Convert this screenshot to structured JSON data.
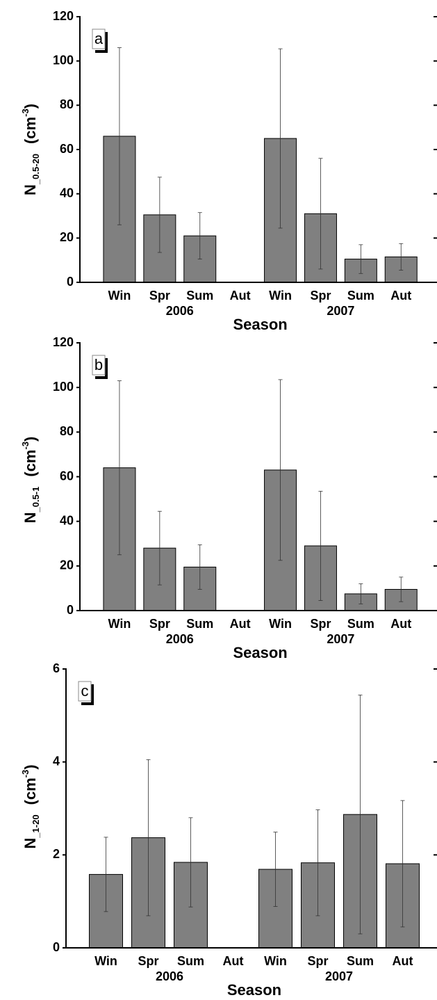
{
  "chart_data": [
    {
      "type": "bar",
      "panel_label": "a",
      "categories": [
        "Win",
        "Spr",
        "Sum",
        "Aut",
        "Win",
        "Spr",
        "Sum",
        "Aut"
      ],
      "group_labels": [
        "2006",
        "2007"
      ],
      "x_label": "Season",
      "y_label": {
        "main": "N",
        "sub": "_0.5-20",
        "unit": "(cm",
        "sup": "-3",
        "close": ")"
      },
      "values": [
        66,
        30.5,
        21,
        null,
        65,
        31,
        10.5,
        11.5
      ],
      "errors": [
        40,
        17,
        10.5,
        null,
        40.5,
        25,
        6.5,
        6
      ],
      "color": "#808080",
      "ylim": [
        0,
        120
      ],
      "yticks": [
        0,
        20,
        40,
        60,
        80,
        100,
        120
      ]
    },
    {
      "type": "bar",
      "panel_label": "b",
      "categories": [
        "Win",
        "Spr",
        "Sum",
        "Aut",
        "Win",
        "Spr",
        "Sum",
        "Aut"
      ],
      "group_labels": [
        "2006",
        "2007"
      ],
      "x_label": "Season",
      "y_label": {
        "main": "N",
        "sub": "_0.5-1",
        "unit": "(cm",
        "sup": "-3",
        "close": ")"
      },
      "values": [
        64,
        28,
        19.5,
        null,
        63,
        29,
        7.5,
        9.5
      ],
      "errors": [
        39,
        16.5,
        10,
        null,
        40.5,
        24.5,
        4.5,
        5.5
      ],
      "color": "#808080",
      "ylim": [
        0,
        120
      ],
      "yticks": [
        0,
        20,
        40,
        60,
        80,
        100,
        120
      ]
    },
    {
      "type": "bar",
      "panel_label": "c",
      "categories": [
        "Win",
        "Spr",
        "Sum",
        "Aut",
        "Win",
        "Spr",
        "Sum",
        "Aut"
      ],
      "group_labels": [
        "2006",
        "2007"
      ],
      "x_label": "Season",
      "y_label": {
        "main": "N",
        "sub": "_1-20",
        "unit": "(cm",
        "sup": "-3",
        "close": ")"
      },
      "values": [
        1.58,
        2.37,
        1.84,
        null,
        1.69,
        1.83,
        2.87,
        1.81
      ],
      "errors": [
        0.8,
        1.68,
        0.96,
        null,
        0.8,
        1.14,
        2.57,
        1.36
      ],
      "color": "#808080",
      "ylim": [
        0,
        6
      ],
      "yticks": [
        0,
        2,
        4,
        6
      ]
    }
  ]
}
